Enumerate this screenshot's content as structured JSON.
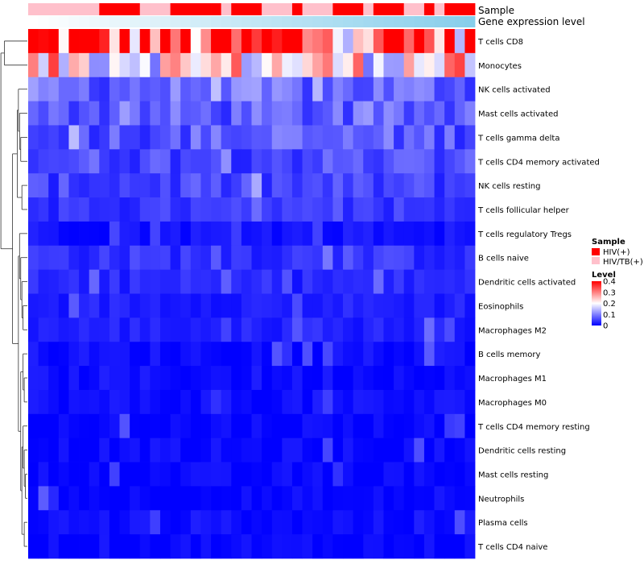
{
  "chart_data": {
    "type": "heatmap",
    "title": "",
    "annotation_labels": [
      "Sample",
      "Gene expression level"
    ],
    "rows": [
      "T cells CD8",
      "Monocytes",
      "NK cells activated",
      "Mast cells activated",
      "T cells gamma delta",
      "T cells CD4 memory activated",
      "NK cells resting",
      "T cells follicular helper",
      "T cells regulatory  Tregs",
      "B cells naive",
      "Dendritic cells activated",
      "Eosinophils",
      "Macrophages M2",
      "B cells memory",
      "Macrophages M1",
      "Macrophages M0",
      "T cells CD4 memory resting",
      "Dendritic cells resting",
      "Mast cells resting",
      "Neutrophils",
      "Plasma cells",
      "T cells CD4 naive"
    ],
    "n_samples": 44,
    "row_means": [
      0.34,
      0.22,
      0.08,
      0.07,
      0.07,
      0.06,
      0.05,
      0.04,
      0.015,
      0.04,
      0.03,
      0.025,
      0.025,
      0.01,
      0.01,
      0.01,
      0.005,
      0.005,
      0.003,
      0.002,
      0.01,
      0.005
    ],
    "sample_groups": [
      "HIV/TB(+)",
      "HIV/TB(+)",
      "HIV/TB(+)",
      "HIV/TB(+)",
      "HIV/TB(+)",
      "HIV/TB(+)",
      "HIV/TB(+)",
      "HIV(+)",
      "HIV(+)",
      "HIV(+)",
      "HIV(+)",
      "HIV/TB(+)",
      "HIV/TB(+)",
      "HIV/TB(+)",
      "HIV(+)",
      "HIV(+)",
      "HIV(+)",
      "HIV(+)",
      "HIV(+)",
      "HIV/TB(+)",
      "HIV(+)",
      "HIV(+)",
      "HIV(+)",
      "HIV/TB(+)",
      "HIV/TB(+)",
      "HIV/TB(+)",
      "HIV(+)",
      "HIV/TB(+)",
      "HIV/TB(+)",
      "HIV/TB(+)",
      "HIV(+)",
      "HIV(+)",
      "HIV(+)",
      "HIV/TB(+)",
      "HIV(+)",
      "HIV(+)",
      "HIV(+)",
      "HIV/TB(+)",
      "HIV/TB(+)",
      "HIV(+)",
      "HIV/TB(+)",
      "HIV(+)",
      "HIV(+)",
      "HIV(+)"
    ],
    "legend": {
      "sample_title": "Sample",
      "sample_entries": [
        {
          "label": "HIV(+)",
          "color": "#ff0000"
        },
        {
          "label": "HIV/TB(+)",
          "color": "#ffc0cb"
        }
      ],
      "level_title": "Level",
      "level_ticks": [
        {
          "label": "0.4",
          "value": 0.4
        },
        {
          "label": "0.3",
          "value": 0.3
        },
        {
          "label": "0.2",
          "value": 0.2
        },
        {
          "label": "0.1",
          "value": 0.1
        },
        {
          "label": "0",
          "value": 0
        }
      ],
      "placement": "right"
    },
    "color_scale": {
      "low": "#0000ff",
      "mid": "#ffffff",
      "high": "#ff0000",
      "min": 0,
      "mid_value": 0.2,
      "max": 0.4
    },
    "annotation_gradient": {
      "from": "#ffffff",
      "to": "#87ceeb"
    }
  }
}
